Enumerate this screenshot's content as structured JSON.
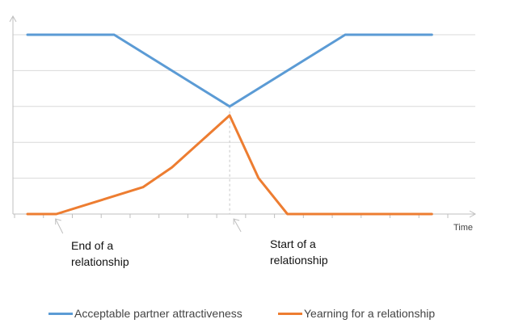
{
  "chart_data": {
    "type": "line",
    "title": "",
    "xlabel": "Time",
    "ylabel": "",
    "x": [
      0,
      1,
      2,
      3,
      4,
      5,
      6,
      7,
      8,
      9,
      10,
      11,
      12,
      13,
      14,
      15
    ],
    "xlim": [
      0,
      15
    ],
    "ylim": [
      0,
      5
    ],
    "grid": true,
    "legend": "bottom",
    "series": [
      {
        "name": "Acceptable partner attractiveness",
        "color": "#5b9bd5",
        "points": [
          [
            0,
            5
          ],
          [
            3,
            5
          ],
          [
            7,
            3
          ],
          [
            11,
            5
          ],
          [
            14,
            5
          ]
        ]
      },
      {
        "name": "Yearning for a relationship",
        "color": "#ed7d31",
        "points": [
          [
            0,
            0
          ],
          [
            1,
            0
          ],
          [
            4,
            0.75
          ],
          [
            5,
            1.3
          ],
          [
            7,
            2.75
          ],
          [
            8,
            1
          ],
          [
            9,
            0
          ],
          [
            14,
            0
          ]
        ]
      }
    ],
    "annotations": [
      {
        "line1": "End of a",
        "line2": "relationship",
        "x": 1
      },
      {
        "line1": "Start of a",
        "line2": "relationship",
        "x": 7
      }
    ]
  }
}
